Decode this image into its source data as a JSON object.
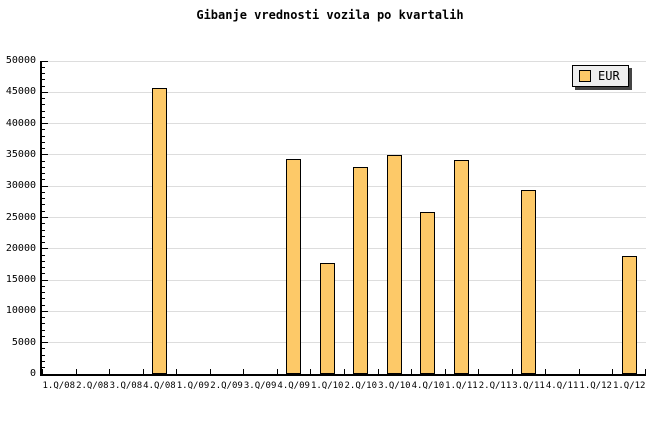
{
  "title": "Gibanje vrednosti vozila po kvartalih",
  "legend": {
    "label": "EUR"
  },
  "colors": {
    "bar_fill": "#FDC968",
    "bar_border": "#000000",
    "gridline": "#DDDDDD",
    "axis": "#000000",
    "background": "#FFFFFF",
    "legend_background": "#EEEEEE",
    "legend_shadow": "#444444",
    "text": "#000000"
  },
  "chart_data": {
    "type": "bar",
    "title": "Gibanje vrednosti vozila po kvartalih",
    "categories": [
      "1.Q/08",
      "2.Q/08",
      "3.Q/08",
      "4.Q/08",
      "1.Q/09",
      "2.Q/09",
      "3.Q/09",
      "4.Q/09",
      "1.Q/10",
      "2.Q/10",
      "3.Q/10",
      "4.Q/10",
      "1.Q/11",
      "2.Q/11",
      "3.Q/11",
      "4.Q/11",
      "1.Q/12",
      "1.Q/12"
    ],
    "series": [
      {
        "name": "EUR",
        "values": [
          null,
          null,
          null,
          45700,
          null,
          null,
          null,
          34300,
          17800,
          33000,
          35000,
          25900,
          34200,
          null,
          29400,
          null,
          null,
          18800
        ]
      }
    ],
    "ylim": [
      0,
      50000
    ],
    "ytick_step": 5000,
    "ytick_minor_step": 1000,
    "ytick_labels": [
      "0",
      "5000",
      "10000",
      "15000",
      "20000",
      "25000",
      "30000",
      "35000",
      "40000",
      "45000",
      "50000"
    ],
    "xlabel": "",
    "ylabel": "",
    "grid": "horizontal",
    "legend_position": "top-right"
  }
}
